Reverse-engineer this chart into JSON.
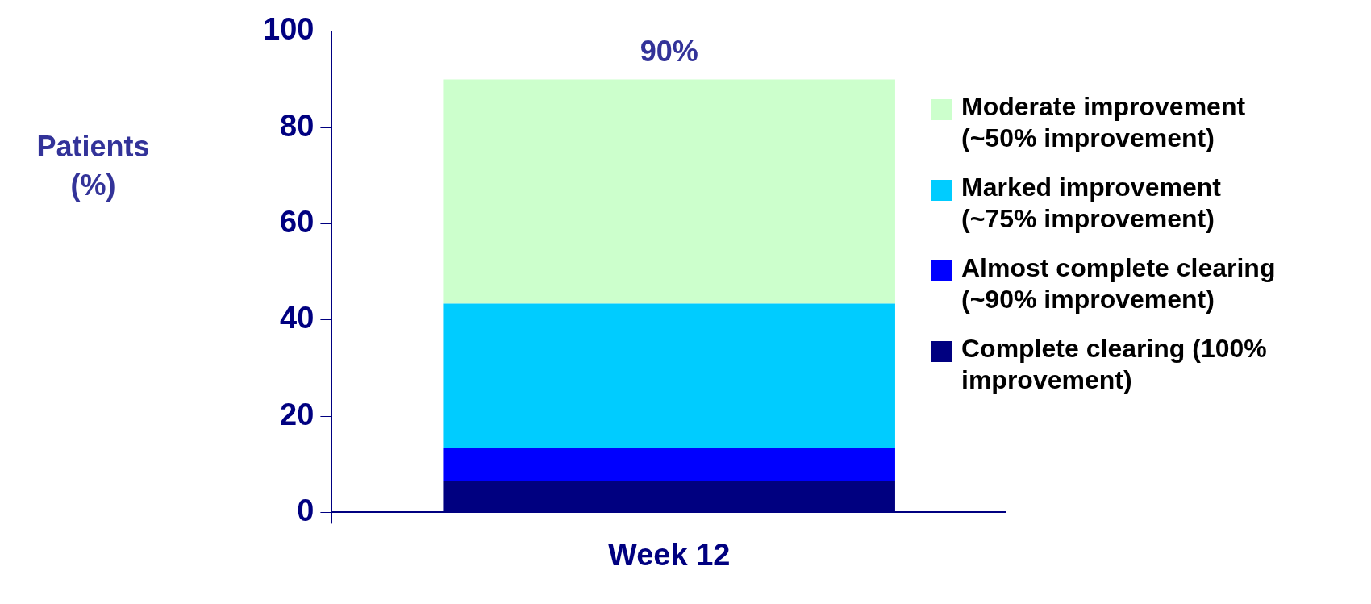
{
  "chart_data": {
    "type": "bar",
    "stacked": true,
    "ylabel": "Patients (%)",
    "categories": [
      "Week 12"
    ],
    "series": [
      {
        "name": "Complete clearing (100% improvement)",
        "color": "#000080",
        "values": [
          6.6
        ]
      },
      {
        "name": "Almost complete clearing (~90% improvement)",
        "color": "#0000ff",
        "values": [
          6.7
        ]
      },
      {
        "name": "Marked improvement (~75% improvement)",
        "color": "#00ccff",
        "values": [
          30.1
        ]
      },
      {
        "name": "Moderate improvement (~50% improvement)",
        "color": "#ccffcc",
        "values": [
          46.6
        ]
      }
    ],
    "totals": [
      "90%"
    ],
    "ylim": [
      0,
      100
    ],
    "yticks": [
      0,
      20,
      40,
      60,
      80,
      100
    ],
    "grid": false,
    "legend": "right"
  }
}
